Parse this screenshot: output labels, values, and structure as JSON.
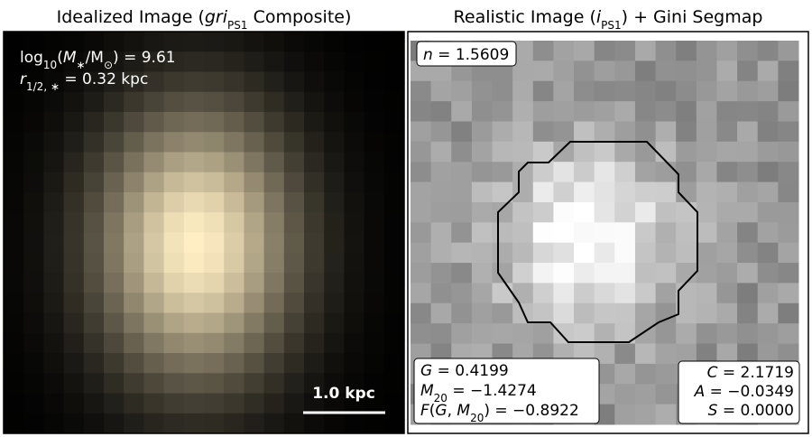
{
  "left_panel": {
    "title": [
      "Idealized Image (",
      "gri",
      "PS1",
      " Composite)"
    ],
    "mass": [
      "log",
      "10",
      "(",
      "M",
      "∗",
      "/M",
      "⊙",
      ") = 9.61"
    ],
    "radius": [
      "r",
      "1/2, ∗",
      " = 0.32 kpc"
    ],
    "scale_bar": "1.0 kpc"
  },
  "right_panel": {
    "title": [
      "Realistic Image (",
      "i",
      "PS1",
      ") + Gini Segmap"
    ],
    "sersic": [
      "n",
      " = 1.5609"
    ],
    "gini": [
      "G",
      " = 0.4199"
    ],
    "m20": [
      "M",
      "20",
      " = −1.4274"
    ],
    "f": [
      "F",
      "(",
      "G",
      ", ",
      "M",
      "20",
      ") = −0.8922"
    ],
    "concentration": [
      "C",
      " = 2.1719"
    ],
    "asymmetry": [
      "A",
      " = −0.0349"
    ],
    "smoothness": [
      "S",
      " = 0.0000"
    ]
  }
}
